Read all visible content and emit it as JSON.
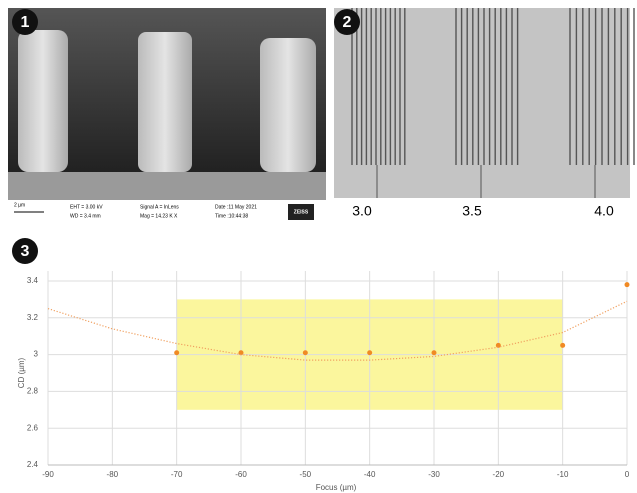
{
  "panels": [
    {
      "label": "1",
      "scale_bar": "2 µm",
      "info": [
        "EHT = 3.00 kV",
        "WD = 3.4 mm",
        "Signal A = InLens",
        "Mag = 14.23 K X",
        "Date :11 May 2021",
        "Time :10:44:38"
      ],
      "logo": "ZEISS"
    },
    {
      "label": "2",
      "pitch_labels": [
        "3.0",
        "3.5",
        "4.0"
      ]
    },
    {
      "label": "3"
    }
  ],
  "chart_data": {
    "type": "scatter",
    "x_label": "Focus (µm)",
    "y_label": "CD (µm)",
    "xlim": [
      -90,
      0
    ],
    "xticks": [
      -90,
      -80,
      -70,
      -60,
      -50,
      -40,
      -30,
      -20,
      -10,
      0
    ],
    "ylim": [
      2.4,
      3.4
    ],
    "yticks": [
      2.4,
      2.6,
      2.8,
      3,
      3.2,
      3.4
    ],
    "grid": true,
    "highlight": {
      "xlim": [
        -70,
        -10
      ],
      "ylim": [
        2.7,
        3.3
      ],
      "color": "#faf48c"
    },
    "series": [
      {
        "color": "#f08a24",
        "x": [
          -70,
          -60,
          -50,
          -40,
          -30,
          -20,
          -10,
          0
        ],
        "values": [
          3.01,
          3.01,
          3.01,
          3.01,
          3.01,
          3.05,
          3.05,
          3.38
        ]
      },
      {
        "color": "#f0a060",
        "style": "dotted",
        "x": [
          -90,
          -80,
          -70,
          -60,
          -50,
          -40,
          -30,
          -20,
          -10,
          0
        ],
        "values": [
          3.25,
          3.14,
          3.06,
          3.0,
          2.97,
          2.97,
          2.99,
          3.04,
          3.12,
          3.29
        ]
      }
    ]
  }
}
